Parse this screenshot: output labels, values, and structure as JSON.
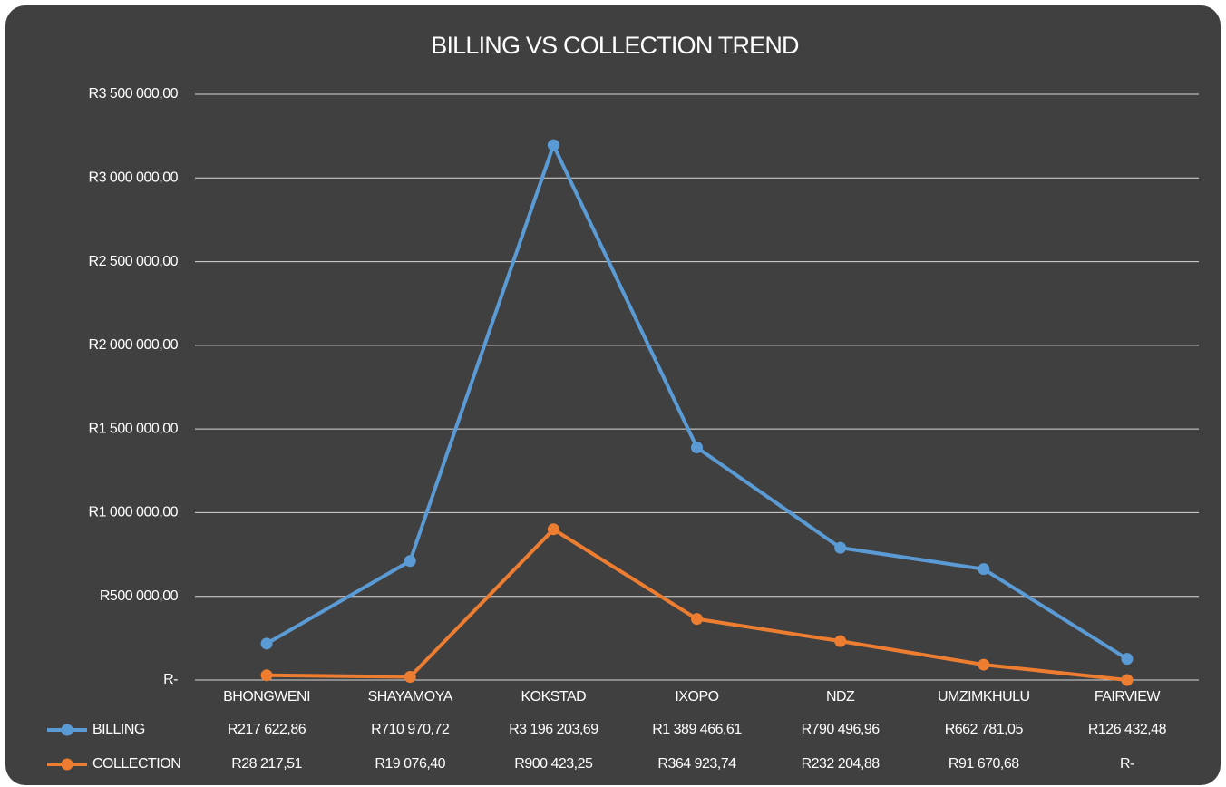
{
  "chart_data": {
    "type": "line",
    "title": "BILLING VS COLLECTION TREND",
    "categories": [
      "BHONGWENI",
      "SHAYAMOYA",
      "KOKSTAD",
      "IXOPO",
      "NDZ",
      "UMZIMKHULU",
      "FAIRVIEW"
    ],
    "series": [
      {
        "name": "BILLING",
        "color": "#5b9bd5",
        "values": [
          217622.86,
          710970.72,
          3196203.69,
          1389466.61,
          790496.96,
          662781.05,
          126432.48
        ],
        "value_labels": [
          "R217 622,86",
          "R710 970,72",
          "R3 196 203,69",
          "R1 389 466,61",
          "R790 496,96",
          "R662 781,05",
          "R126 432,48"
        ]
      },
      {
        "name": "COLLECTION",
        "color": "#ed7d31",
        "values": [
          28217.51,
          19076.4,
          900423.25,
          364923.74,
          232204.88,
          91670.68,
          0
        ],
        "value_labels": [
          "R28 217,51",
          "R19 076,40",
          "R900 423,25",
          "R364 923,74",
          "R232 204,88",
          "R91 670,68",
          "R-"
        ]
      }
    ],
    "ylim": [
      0,
      3500000
    ],
    "yticks": [
      {
        "value": 0,
        "label": "R-"
      },
      {
        "value": 500000,
        "label": "R500 000,00"
      },
      {
        "value": 1000000,
        "label": "R1 000 000,00"
      },
      {
        "value": 1500000,
        "label": "R1 500 000,00"
      },
      {
        "value": 2000000,
        "label": "R2 000 000,00"
      },
      {
        "value": 2500000,
        "label": "R2 500 000,00"
      },
      {
        "value": 3000000,
        "label": "R3 000 000,00"
      },
      {
        "value": 3500000,
        "label": "R3 500 000,00"
      }
    ],
    "grid": true
  }
}
